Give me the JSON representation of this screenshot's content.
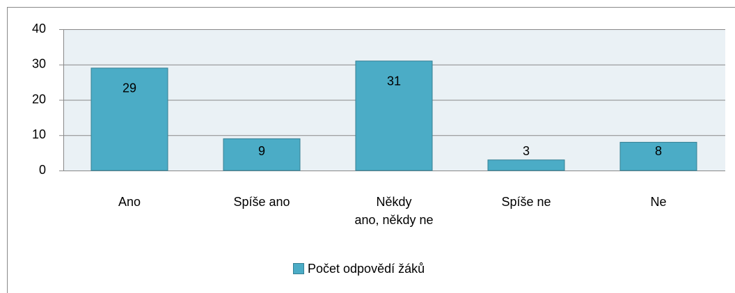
{
  "chart_data": {
    "type": "bar",
    "categories": [
      "Ano",
      "Spíše ano",
      "Někdy\nano, někdy ne",
      "Spíše ne",
      "Ne"
    ],
    "series": [
      {
        "name": "Počet odpovědí žáků",
        "color": "#4bacc6",
        "values": [
          29,
          9,
          31,
          3,
          8
        ]
      }
    ],
    "ylim": [
      0,
      40
    ],
    "yticks": [
      0,
      10,
      20,
      30,
      40
    ],
    "grid": true,
    "legend": "bottom"
  }
}
